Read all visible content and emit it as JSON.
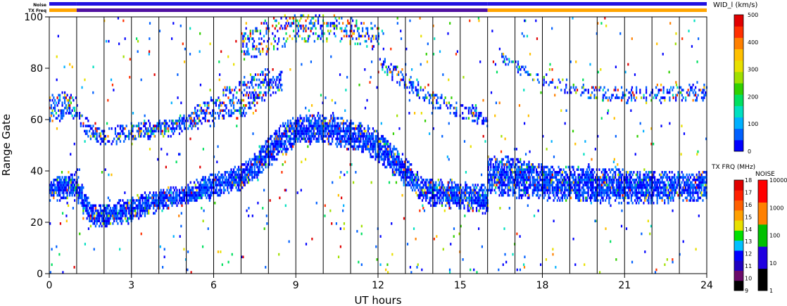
{
  "chart_data": {
    "type": "heatmap",
    "title": "",
    "xlabel": "UT hours",
    "ylabel": "Range Gate",
    "xlim": [
      0,
      24
    ],
    "ylim": [
      0,
      100
    ],
    "xticks": [
      0,
      3,
      6,
      9,
      12,
      15,
      18,
      21,
      24
    ],
    "yticks": [
      0,
      20,
      40,
      60,
      80,
      100
    ],
    "hour_lines": [
      1,
      2,
      3,
      4,
      5,
      6,
      7,
      8,
      9,
      10,
      11,
      12,
      13,
      14,
      15,
      16,
      17,
      18,
      19,
      20,
      21,
      22,
      23
    ],
    "status_bars": {
      "noise_label": "Noise",
      "txfreq_label": "TX Freq",
      "noise": [
        {
          "from": 0,
          "to": 1,
          "color": "#2010e0"
        },
        {
          "from": 1,
          "to": 16,
          "color": "#2010e0"
        },
        {
          "from": 16,
          "to": 24,
          "color": "#2010e0"
        }
      ],
      "txfreq": [
        {
          "from": 0,
          "to": 1,
          "color": "#ffa500"
        },
        {
          "from": 1,
          "to": 16,
          "color": "#5010a0"
        },
        {
          "from": 16,
          "to": 24,
          "color": "#ffa500"
        }
      ]
    },
    "colorbar_width": {
      "label": "WID_l (km/s)",
      "ticks": [
        "0",
        "100",
        "200",
        "300",
        "400",
        "500"
      ],
      "colors": [
        "#0000ff",
        "#0060ff",
        "#00b0ff",
        "#00e0c0",
        "#00e060",
        "#30d000",
        "#a0e000",
        "#e8e000",
        "#ffc000",
        "#ff8000",
        "#ff3000",
        "#e00000"
      ]
    },
    "colorbar_txfreq": {
      "label": "TX FRQ (MHz)",
      "ticks": [
        "9",
        "10",
        "11",
        "12",
        "13",
        "14",
        "15",
        "16",
        "17",
        "18"
      ],
      "colors": [
        "#000000",
        "#6a0a6a",
        "#2000c0",
        "#0000ff",
        "#00c0ff",
        "#00e000",
        "#e8e000",
        "#ffa000",
        "#ff6000",
        "#ff2000",
        "#e00000"
      ]
    },
    "colorbar_noise": {
      "label": "NOISE",
      "ticks": [
        "1",
        "10",
        "100",
        "1000",
        "10000"
      ],
      "colors": [
        "#000000",
        "#2000e0",
        "#00c000",
        "#ff8000",
        "#ff0000"
      ]
    },
    "bands": [
      {
        "t": [
          0.0,
          0.4,
          0.8,
          1.0,
          1.5,
          2.0,
          3.0,
          4.0,
          5.0,
          6.0,
          7.0,
          7.5,
          8.0,
          8.5,
          9.0,
          9.5,
          10.5,
          11.5,
          12.0,
          12.5,
          13.0,
          13.5,
          14.0,
          15.0,
          16.0
        ],
        "center": [
          32,
          33,
          34,
          33,
          22,
          22,
          25,
          28,
          30,
          34,
          37,
          41,
          47,
          52,
          55,
          56,
          55,
          52,
          49,
          44,
          39,
          33,
          31,
          30,
          28
        ],
        "half": [
          3.5,
          4,
          5,
          5,
          4,
          4,
          4,
          3.5,
          3.5,
          4,
          4,
          4.5,
          5,
          5,
          5,
          5,
          5,
          5,
          5,
          5,
          5,
          4.5,
          4.5,
          4.5,
          5
        ],
        "density": 0.88,
        "level": 0.08
      },
      {
        "t": [
          16.0,
          17.0,
          18.0,
          20.0,
          22.0,
          24.0
        ],
        "center": [
          38,
          37,
          35,
          34,
          33,
          34
        ],
        "half": [
          7,
          7,
          6,
          6,
          5.5,
          5
        ],
        "density": 0.85,
        "level": 0.07
      },
      {
        "t": [
          0.0,
          0.8,
          1.2,
          2.0,
          3.0,
          4.0,
          5.0,
          6.0,
          7.0,
          8.0,
          8.5
        ],
        "center": [
          64,
          66,
          58,
          52,
          55,
          56,
          58,
          61,
          65,
          72,
          76
        ],
        "half": [
          5,
          5,
          3,
          3,
          3,
          3,
          3,
          3,
          4,
          4,
          4
        ],
        "density": 0.45,
        "level": 0.22
      },
      {
        "t": [
          3.0,
          4.0,
          5.0,
          6.0,
          7.0,
          8.0
        ],
        "center": [
          52,
          56,
          60,
          66,
          72,
          78
        ],
        "half": [
          2,
          2,
          2,
          2.5,
          3,
          3
        ],
        "density": 0.35,
        "level": 0.3
      },
      {
        "t": [
          12.0,
          13.0,
          14.0,
          15.0,
          16.0
        ],
        "center": [
          82,
          74,
          67,
          63,
          59
        ],
        "half": [
          2.5,
          3,
          3,
          3,
          3
        ],
        "density": 0.4,
        "level": 0.2
      },
      {
        "t": [
          16.5,
          17.5,
          19.0,
          21.0,
          23.0,
          24.0
        ],
        "center": [
          84,
          77,
          71,
          69,
          70,
          70
        ],
        "half": [
          2,
          2,
          2,
          2.5,
          3,
          3
        ],
        "density": 0.35,
        "level": 0.25
      },
      {
        "t": [
          7.0,
          8.0,
          9.0,
          10.0,
          11.0,
          12.0
        ],
        "center": [
          88,
          92,
          96,
          95,
          94,
          92
        ],
        "half": [
          6,
          6,
          5,
          5,
          5,
          5
        ],
        "density": 0.3,
        "level": 0.45
      }
    ]
  }
}
